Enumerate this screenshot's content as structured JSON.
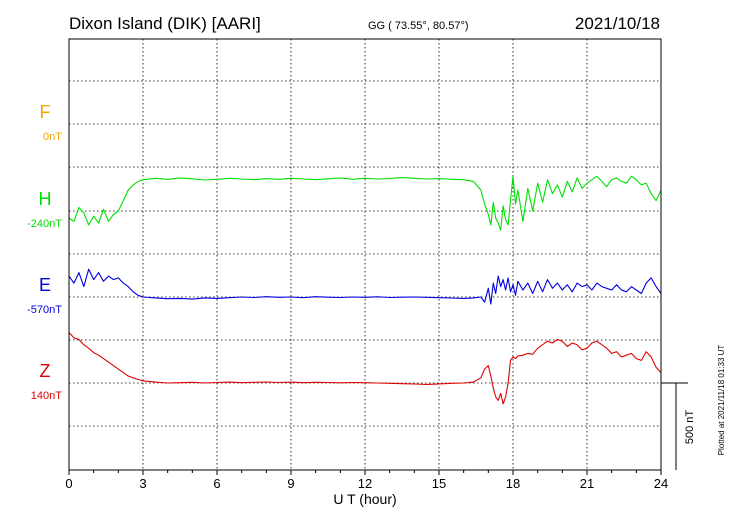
{
  "chart_data": {
    "type": "line",
    "title": "Dixon Island (DIK)  [AARI]",
    "coords": "GG ( 73.55°,  80.57°)",
    "date": "2021/10/18",
    "xlabel": "U T (hour)",
    "xlim": [
      0,
      24
    ],
    "xticks": [
      0,
      3,
      6,
      9,
      12,
      15,
      18,
      21,
      24
    ],
    "scale_label": "500 nT",
    "plotted_note": "Plotted at 2021/11/18 01:33 UT",
    "grid": true,
    "series": [
      {
        "name": "F",
        "offset_label": "0nT",
        "color": "#f5a400",
        "x": [],
        "y": []
      },
      {
        "name": "H",
        "offset_label": "-240nT",
        "color": "#00e000",
        "x": [
          0,
          0.2,
          0.4,
          0.6,
          0.8,
          1.0,
          1.2,
          1.4,
          1.6,
          1.8,
          2.0,
          2.2,
          2.4,
          2.6,
          2.8,
          3.0,
          3.5,
          4,
          4.5,
          5,
          5.5,
          6,
          6.5,
          7,
          7.5,
          8,
          8.5,
          9,
          9.5,
          10,
          10.5,
          11,
          11.5,
          12,
          12.5,
          13,
          13.5,
          14,
          14.5,
          15,
          15.5,
          16,
          16.4,
          16.7,
          16.85,
          17.0,
          17.1,
          17.2,
          17.3,
          17.4,
          17.5,
          17.6,
          17.7,
          17.8,
          17.9,
          18.0,
          18.1,
          18.2,
          18.4,
          18.6,
          18.8,
          19.0,
          19.2,
          19.4,
          19.6,
          19.8,
          20.0,
          20.2,
          20.4,
          20.6,
          20.8,
          21.0,
          21.2,
          21.4,
          21.6,
          21.8,
          22.0,
          22.2,
          22.4,
          22.6,
          22.8,
          23.0,
          23.2,
          23.4,
          23.6,
          23.8,
          24.0
        ],
        "y": [
          -40,
          -60,
          20,
          -10,
          -80,
          -30,
          -70,
          10,
          -60,
          -20,
          0,
          60,
          120,
          150,
          170,
          180,
          188,
          182,
          190,
          185,
          178,
          182,
          188,
          184,
          180,
          186,
          182,
          188,
          184,
          180,
          185,
          190,
          182,
          188,
          184,
          186,
          192,
          188,
          184,
          186,
          182,
          180,
          170,
          120,
          40,
          -20,
          -80,
          50,
          -40,
          -70,
          -110,
          30,
          -50,
          -80,
          60,
          200,
          40,
          120,
          -60,
          130,
          0,
          160,
          50,
          180,
          100,
          150,
          80,
          170,
          110,
          190,
          130,
          160,
          180,
          200,
          170,
          140,
          180,
          190,
          170,
          160,
          200,
          180,
          150,
          160,
          100,
          60,
          120
        ]
      },
      {
        "name": "E",
        "offset_label": "-570nT",
        "color": "#0000e0",
        "x": [
          0,
          0.2,
          0.4,
          0.6,
          0.8,
          1.0,
          1.2,
          1.4,
          1.6,
          1.8,
          2.0,
          2.2,
          2.4,
          2.6,
          2.8,
          3.0,
          3.5,
          4,
          4.5,
          5,
          5.5,
          6,
          6.5,
          7,
          7.5,
          8,
          8.5,
          9,
          9.5,
          10,
          10.5,
          11,
          11.5,
          12,
          12.5,
          13,
          13.5,
          14,
          14.5,
          15,
          15.5,
          16,
          16.4,
          16.7,
          16.85,
          17.0,
          17.1,
          17.2,
          17.3,
          17.4,
          17.5,
          17.6,
          17.7,
          17.8,
          17.9,
          18.0,
          18.1,
          18.2,
          18.4,
          18.6,
          18.8,
          19.0,
          19.2,
          19.4,
          19.6,
          19.8,
          20.0,
          20.2,
          20.4,
          20.6,
          20.8,
          21.0,
          21.2,
          21.4,
          21.6,
          21.8,
          22.0,
          22.2,
          22.4,
          22.6,
          22.8,
          23.0,
          23.2,
          23.4,
          23.6,
          23.8,
          24.0
        ],
        "y": [
          120,
          80,
          140,
          60,
          160,
          100,
          140,
          90,
          120,
          100,
          110,
          80,
          60,
          30,
          10,
          0,
          -5,
          -10,
          -8,
          -12,
          -5,
          -8,
          -4,
          0,
          -3,
          2,
          -2,
          0,
          -4,
          2,
          -1,
          -3,
          0,
          -2,
          1,
          -3,
          -1,
          0,
          -2,
          -4,
          -6,
          -8,
          -5,
          0,
          -30,
          50,
          -40,
          80,
          20,
          120,
          60,
          100,
          40,
          110,
          30,
          70,
          10,
          90,
          40,
          80,
          20,
          90,
          30,
          100,
          50,
          80,
          40,
          70,
          30,
          80,
          60,
          70,
          40,
          80,
          60,
          50,
          40,
          70,
          40,
          30,
          60,
          40,
          20,
          80,
          110,
          60,
          20
        ]
      },
      {
        "name": "Z",
        "offset_label": "140nT",
        "color": "#e00000",
        "x": [
          0,
          0.2,
          0.4,
          0.6,
          0.8,
          1.0,
          1.2,
          1.4,
          1.6,
          1.8,
          2.0,
          2.2,
          2.4,
          2.6,
          2.8,
          3.0,
          3.5,
          4,
          4.5,
          5,
          5.5,
          6,
          6.5,
          7,
          7.5,
          8,
          8.5,
          9,
          9.5,
          10,
          10.5,
          11,
          11.5,
          12,
          12.5,
          13,
          13.5,
          14,
          14.5,
          15,
          15.5,
          16,
          16.4,
          16.7,
          16.85,
          17.0,
          17.1,
          17.2,
          17.3,
          17.4,
          17.5,
          17.6,
          17.7,
          17.8,
          17.9,
          18.0,
          18.1,
          18.2,
          18.4,
          18.6,
          18.8,
          19.0,
          19.2,
          19.4,
          19.6,
          19.8,
          20.0,
          20.2,
          20.4,
          20.6,
          20.8,
          21.0,
          21.2,
          21.4,
          21.6,
          21.8,
          22.0,
          22.2,
          22.4,
          22.6,
          22.8,
          23.0,
          23.2,
          23.4,
          23.6,
          23.8,
          24.0
        ],
        "y": [
          290,
          260,
          250,
          220,
          200,
          175,
          160,
          140,
          120,
          100,
          80,
          60,
          40,
          30,
          20,
          12,
          5,
          0,
          2,
          4,
          0,
          3,
          5,
          2,
          4,
          6,
          3,
          5,
          2,
          4,
          3,
          1,
          3,
          2,
          0,
          -2,
          -4,
          -6,
          -8,
          -5,
          -2,
          0,
          5,
          30,
          80,
          100,
          40,
          -30,
          -80,
          -100,
          -60,
          -120,
          -80,
          0,
          130,
          150,
          140,
          155,
          160,
          170,
          165,
          200,
          220,
          240,
          230,
          250,
          240,
          210,
          230,
          220,
          190,
          200,
          230,
          240,
          220,
          200,
          170,
          180,
          150,
          160,
          170,
          140,
          130,
          180,
          150,
          90,
          60
        ]
      }
    ]
  }
}
